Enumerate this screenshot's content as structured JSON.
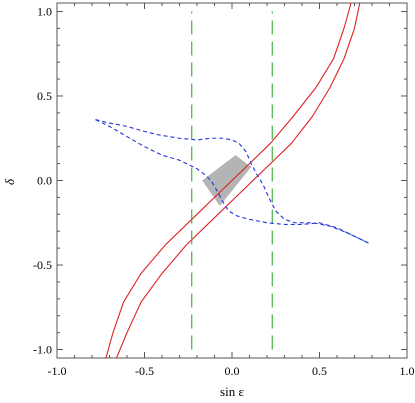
{
  "chart_data": {
    "type": "line",
    "xlabel": "sin ε",
    "ylabel": "δ",
    "xlim": [
      -1.0,
      1.0
    ],
    "ylim": [
      -1.05,
      1.05
    ],
    "x_ticks": [
      "-1.0",
      "-0.5",
      "0.0",
      "0.5",
      "1.0"
    ],
    "x_tick_values": [
      -1.0,
      -0.5,
      0.0,
      0.5,
      1.0
    ],
    "y_ticks": [
      "-1.0",
      "-0.5",
      "0.0",
      "0.5",
      "1.0"
    ],
    "y_tick_values": [
      -1.0,
      -0.5,
      0.0,
      0.5,
      1.0
    ],
    "grid": false,
    "colors": {
      "red": "#dd2222",
      "green": "#33aa33",
      "blue": "#2233dd",
      "fill": "#b4b4b4"
    },
    "series": [
      {
        "style": "solid",
        "color": "#dd2222",
        "points": [
          [
            -0.72,
            -1.05
          ],
          [
            -0.68,
            -0.9
          ],
          [
            -0.62,
            -0.72
          ],
          [
            -0.52,
            -0.55
          ],
          [
            -0.38,
            -0.38
          ],
          [
            -0.22,
            -0.22
          ],
          [
            -0.06,
            -0.06
          ],
          [
            0.08,
            0.08
          ],
          [
            0.22,
            0.22
          ],
          [
            0.35,
            0.38
          ],
          [
            0.48,
            0.55
          ],
          [
            0.58,
            0.72
          ],
          [
            0.64,
            0.9
          ],
          [
            0.68,
            1.05
          ]
        ]
      },
      {
        "style": "solid",
        "color": "#dd2222",
        "points": [
          [
            -0.66,
            -1.05
          ],
          [
            -0.6,
            -0.9
          ],
          [
            -0.52,
            -0.72
          ],
          [
            -0.4,
            -0.55
          ],
          [
            -0.26,
            -0.38
          ],
          [
            -0.1,
            -0.22
          ],
          [
            0.04,
            -0.08
          ],
          [
            0.2,
            0.08
          ],
          [
            0.34,
            0.22
          ],
          [
            0.46,
            0.38
          ],
          [
            0.56,
            0.55
          ],
          [
            0.64,
            0.72
          ],
          [
            0.7,
            0.9
          ],
          [
            0.73,
            1.05
          ]
        ]
      },
      {
        "style": "long-dash",
        "color": "#33aa33",
        "points": [
          [
            -0.23,
            -1.0
          ],
          [
            -0.23,
            1.0
          ]
        ]
      },
      {
        "style": "long-dash",
        "color": "#33aa33",
        "points": [
          [
            0.23,
            -1.0
          ],
          [
            0.23,
            1.0
          ]
        ]
      },
      {
        "style": "short-dash",
        "color": "#2233dd",
        "points": [
          [
            -0.78,
            0.36
          ],
          [
            -0.7,
            0.34
          ],
          [
            -0.6,
            0.32
          ],
          [
            -0.5,
            0.29
          ],
          [
            -0.42,
            0.27
          ],
          [
            -0.3,
            0.25
          ],
          [
            -0.2,
            0.24
          ],
          [
            -0.12,
            0.25
          ],
          [
            -0.05,
            0.25
          ],
          [
            0.0,
            0.24
          ],
          [
            0.04,
            0.22
          ],
          [
            0.08,
            0.17
          ],
          [
            0.11,
            0.1
          ],
          [
            0.14,
            0.04
          ],
          [
            0.18,
            -0.03
          ],
          [
            0.21,
            -0.1
          ],
          [
            0.25,
            -0.18
          ],
          [
            0.3,
            -0.23
          ],
          [
            0.36,
            -0.25
          ],
          [
            0.46,
            -0.25
          ],
          [
            0.56,
            -0.27
          ],
          [
            0.66,
            -0.31
          ],
          [
            0.72,
            -0.34
          ],
          [
            0.78,
            -0.37
          ]
        ]
      },
      {
        "style": "short-dash",
        "color": "#2233dd",
        "points": [
          [
            -0.78,
            0.36
          ],
          [
            -0.7,
            0.32
          ],
          [
            -0.6,
            0.26
          ],
          [
            -0.5,
            0.2
          ],
          [
            -0.4,
            0.15
          ],
          [
            -0.3,
            0.12
          ],
          [
            -0.2,
            0.07
          ],
          [
            -0.15,
            0.03
          ],
          [
            -0.12,
            0.0
          ],
          [
            -0.08,
            -0.07
          ],
          [
            -0.05,
            -0.13
          ],
          [
            -0.02,
            -0.18
          ],
          [
            0.03,
            -0.21
          ],
          [
            0.1,
            -0.23
          ],
          [
            0.2,
            -0.25
          ],
          [
            0.3,
            -0.26
          ],
          [
            0.4,
            -0.26
          ],
          [
            0.5,
            -0.25
          ],
          [
            0.6,
            -0.28
          ],
          [
            0.7,
            -0.33
          ],
          [
            0.78,
            -0.37
          ]
        ]
      }
    ],
    "shaded_region": {
      "color": "#b4b4b4",
      "points": [
        [
          -0.17,
          0.0
        ],
        [
          0.02,
          0.15
        ],
        [
          0.11,
          0.08
        ],
        [
          -0.07,
          -0.15
        ]
      ]
    }
  }
}
